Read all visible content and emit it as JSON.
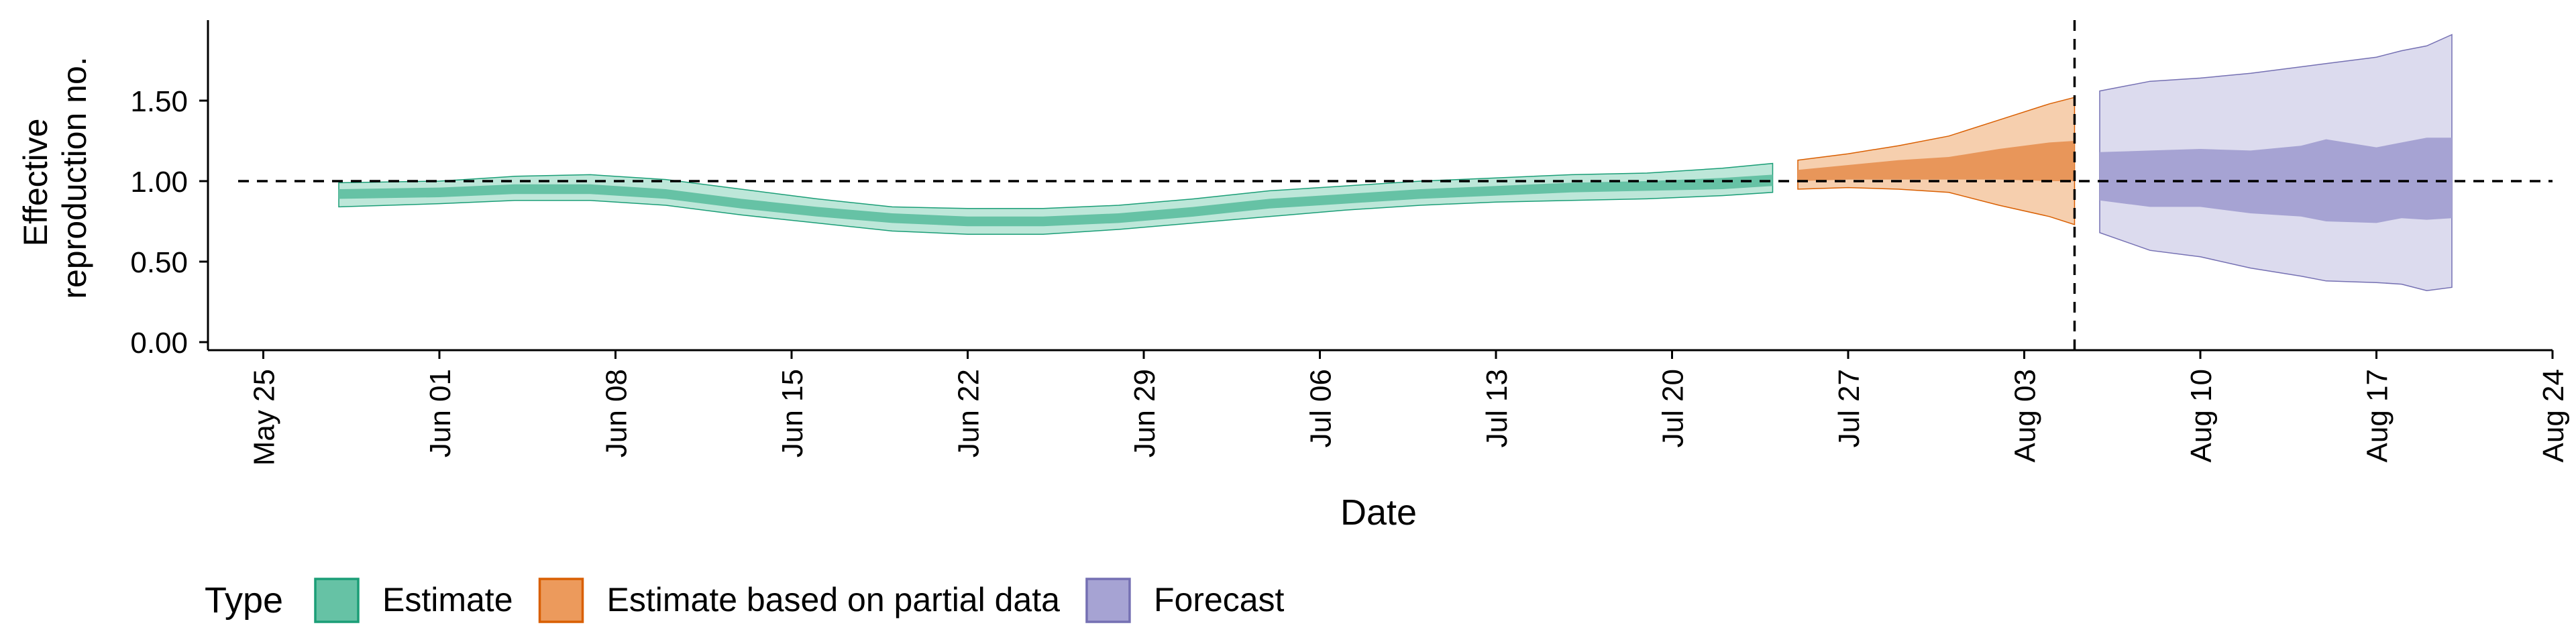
{
  "chart_data": {
    "type": "area",
    "title": "",
    "xlabel": "Date",
    "ylabel_lines": [
      "Effective",
      "reproduction no."
    ],
    "x_axis": {
      "type": "date",
      "range": [
        "2020-05-24",
        "2020-08-24"
      ],
      "ticks": [
        {
          "date": "2020-05-25",
          "label": "May 25"
        },
        {
          "date": "2020-06-01",
          "label": "Jun 01"
        },
        {
          "date": "2020-06-08",
          "label": "Jun 08"
        },
        {
          "date": "2020-06-15",
          "label": "Jun 15"
        },
        {
          "date": "2020-06-22",
          "label": "Jun 22"
        },
        {
          "date": "2020-06-29",
          "label": "Jun 29"
        },
        {
          "date": "2020-07-06",
          "label": "Jul 06"
        },
        {
          "date": "2020-07-13",
          "label": "Jul 13"
        },
        {
          "date": "2020-07-20",
          "label": "Jul 20"
        },
        {
          "date": "2020-07-27",
          "label": "Jul 27"
        },
        {
          "date": "2020-08-03",
          "label": "Aug 03"
        },
        {
          "date": "2020-08-10",
          "label": "Aug 10"
        },
        {
          "date": "2020-08-17",
          "label": "Aug 17"
        },
        {
          "date": "2020-08-24",
          "label": "Aug 24"
        }
      ]
    },
    "y_axis": {
      "range": [
        -0.05,
        2.0
      ],
      "ticks": [
        {
          "value": 0.0,
          "label": "0.00"
        },
        {
          "value": 0.5,
          "label": "0.50"
        },
        {
          "value": 1.0,
          "label": "1.00"
        },
        {
          "value": 1.5,
          "label": "1.50"
        }
      ]
    },
    "reference_lines": {
      "horizontal_y": 1.0,
      "vertical_date": "2020-08-05"
    },
    "legend": {
      "title": "Type",
      "position": "bottom-left",
      "entries": [
        {
          "label": "Estimate",
          "fill": "#66c2a5",
          "stroke": "#1b9e77"
        },
        {
          "label": "Estimate based on partial data",
          "fill": "#ec9a5c",
          "stroke": "#d95f02"
        },
        {
          "label": "Forecast",
          "fill": "#a6a3d3",
          "stroke": "#7570b3"
        }
      ]
    },
    "series": [
      {
        "name": "Estimate",
        "color": "#1b9e77",
        "points": [
          {
            "date": "2020-05-28",
            "lo90": 0.84,
            "lo50": 0.89,
            "hi50": 0.95,
            "hi90": 0.99
          },
          {
            "date": "2020-06-01",
            "lo90": 0.86,
            "lo50": 0.9,
            "hi50": 0.96,
            "hi90": 1.0
          },
          {
            "date": "2020-06-04",
            "lo90": 0.88,
            "lo50": 0.92,
            "hi50": 0.98,
            "hi90": 1.03
          },
          {
            "date": "2020-06-07",
            "lo90": 0.88,
            "lo50": 0.92,
            "hi50": 0.98,
            "hi90": 1.04
          },
          {
            "date": "2020-06-10",
            "lo90": 0.85,
            "lo50": 0.89,
            "hi50": 0.95,
            "hi90": 1.01
          },
          {
            "date": "2020-06-13",
            "lo90": 0.79,
            "lo50": 0.83,
            "hi50": 0.89,
            "hi90": 0.95
          },
          {
            "date": "2020-06-16",
            "lo90": 0.74,
            "lo50": 0.78,
            "hi50": 0.84,
            "hi90": 0.89
          },
          {
            "date": "2020-06-19",
            "lo90": 0.69,
            "lo50": 0.74,
            "hi50": 0.8,
            "hi90": 0.84
          },
          {
            "date": "2020-06-22",
            "lo90": 0.67,
            "lo50": 0.72,
            "hi50": 0.78,
            "hi90": 0.83
          },
          {
            "date": "2020-06-25",
            "lo90": 0.67,
            "lo50": 0.72,
            "hi50": 0.78,
            "hi90": 0.83
          },
          {
            "date": "2020-06-28",
            "lo90": 0.7,
            "lo50": 0.74,
            "hi50": 0.8,
            "hi90": 0.85
          },
          {
            "date": "2020-07-01",
            "lo90": 0.74,
            "lo50": 0.78,
            "hi50": 0.84,
            "hi90": 0.89
          },
          {
            "date": "2020-07-04",
            "lo90": 0.78,
            "lo50": 0.83,
            "hi50": 0.89,
            "hi90": 0.94
          },
          {
            "date": "2020-07-07",
            "lo90": 0.82,
            "lo50": 0.86,
            "hi50": 0.92,
            "hi90": 0.97
          },
          {
            "date": "2020-07-10",
            "lo90": 0.85,
            "lo50": 0.89,
            "hi50": 0.95,
            "hi90": 1.0
          },
          {
            "date": "2020-07-13",
            "lo90": 0.87,
            "lo50": 0.91,
            "hi50": 0.97,
            "hi90": 1.02
          },
          {
            "date": "2020-07-16",
            "lo90": 0.88,
            "lo50": 0.93,
            "hi50": 0.99,
            "hi90": 1.04
          },
          {
            "date": "2020-07-19",
            "lo90": 0.89,
            "lo50": 0.94,
            "hi50": 1.0,
            "hi90": 1.05
          },
          {
            "date": "2020-07-22",
            "lo90": 0.91,
            "lo50": 0.95,
            "hi50": 1.02,
            "hi90": 1.08
          },
          {
            "date": "2020-07-24",
            "lo90": 0.93,
            "lo50": 0.97,
            "hi50": 1.04,
            "hi90": 1.11
          }
        ]
      },
      {
        "name": "Estimate based on partial data",
        "color": "#d95f02",
        "points": [
          {
            "date": "2020-07-25",
            "lo90": 0.95,
            "lo50": 1.0,
            "hi50": 1.07,
            "hi90": 1.13
          },
          {
            "date": "2020-07-27",
            "lo90": 0.96,
            "lo50": 1.01,
            "hi50": 1.1,
            "hi90": 1.17
          },
          {
            "date": "2020-07-29",
            "lo90": 0.95,
            "lo50": 1.01,
            "hi50": 1.13,
            "hi90": 1.22
          },
          {
            "date": "2020-07-31",
            "lo90": 0.93,
            "lo50": 1.01,
            "hi50": 1.15,
            "hi90": 1.28
          },
          {
            "date": "2020-08-02",
            "lo90": 0.85,
            "lo50": 1.01,
            "hi50": 1.2,
            "hi90": 1.38
          },
          {
            "date": "2020-08-04",
            "lo90": 0.78,
            "lo50": 1.0,
            "hi50": 1.24,
            "hi90": 1.48
          },
          {
            "date": "2020-08-05",
            "lo90": 0.73,
            "lo50": 1.0,
            "hi50": 1.25,
            "hi90": 1.52
          }
        ]
      },
      {
        "name": "Forecast",
        "color": "#7570b3",
        "points": [
          {
            "date": "2020-08-06",
            "lo90": 0.68,
            "lo50": 0.88,
            "hi50": 1.18,
            "hi90": 1.56
          },
          {
            "date": "2020-08-08",
            "lo90": 0.57,
            "lo50": 0.84,
            "hi50": 1.19,
            "hi90": 1.62
          },
          {
            "date": "2020-08-10",
            "lo90": 0.53,
            "lo50": 0.84,
            "hi50": 1.2,
            "hi90": 1.64
          },
          {
            "date": "2020-08-12",
            "lo90": 0.46,
            "lo50": 0.8,
            "hi50": 1.19,
            "hi90": 1.67
          },
          {
            "date": "2020-08-14",
            "lo90": 0.41,
            "lo50": 0.78,
            "hi50": 1.22,
            "hi90": 1.71
          },
          {
            "date": "2020-08-15",
            "lo90": 0.38,
            "lo50": 0.75,
            "hi50": 1.26,
            "hi90": 1.73
          },
          {
            "date": "2020-08-17",
            "lo90": 0.37,
            "lo50": 0.74,
            "hi50": 1.21,
            "hi90": 1.77
          },
          {
            "date": "2020-08-18",
            "lo90": 0.36,
            "lo50": 0.77,
            "hi50": 1.24,
            "hi90": 1.81
          },
          {
            "date": "2020-08-19",
            "lo90": 0.32,
            "lo50": 0.76,
            "hi50": 1.27,
            "hi90": 1.84
          },
          {
            "date": "2020-08-20",
            "lo90": 0.34,
            "lo50": 0.77,
            "hi50": 1.27,
            "hi90": 1.91
          }
        ]
      }
    ]
  }
}
